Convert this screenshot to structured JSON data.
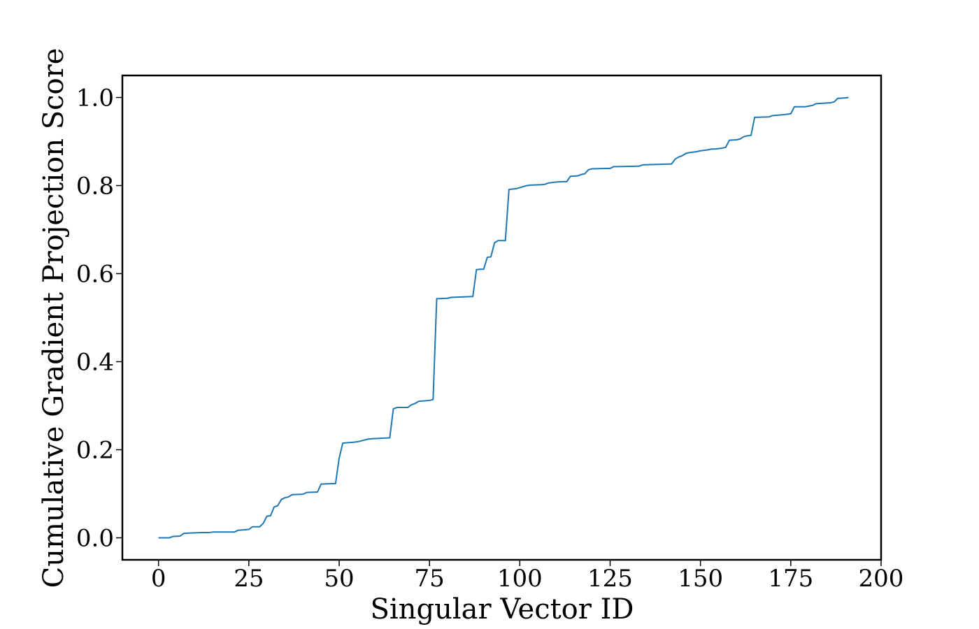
{
  "chart_data": {
    "type": "line",
    "title": "",
    "xlabel": "Singular Vector ID",
    "ylabel": "Cumulative Gradient Projection Score",
    "xlim": [
      -10,
      200
    ],
    "ylim": [
      -0.05,
      1.05
    ],
    "xticks": [
      0,
      25,
      50,
      75,
      100,
      125,
      150,
      175,
      200
    ],
    "xtick_labels": [
      "0",
      "25",
      "50",
      "75",
      "100",
      "125",
      "150",
      "175",
      "200"
    ],
    "yticks": [
      0.0,
      0.2,
      0.4,
      0.6,
      0.8,
      1.0
    ],
    "ytick_labels": [
      "0.0",
      "0.2",
      "0.4",
      "0.6",
      "0.8",
      "1.0"
    ],
    "grid": false,
    "legend": "none",
    "series": [
      {
        "color": "#1f77b4",
        "x": [
          0,
          3,
          4,
          6,
          7,
          9,
          12,
          14,
          15,
          17,
          21,
          22,
          25,
          26,
          28,
          29,
          30,
          31,
          32,
          33,
          34,
          35,
          36,
          37,
          40,
          41,
          44,
          45,
          48,
          49,
          50,
          51,
          54,
          55,
          58,
          59,
          64,
          65,
          66,
          69,
          70,
          71,
          72,
          75,
          76,
          77,
          80,
          81,
          84,
          87,
          88,
          89,
          90,
          91,
          92,
          93,
          94,
          96,
          97,
          98,
          99,
          102,
          103,
          106,
          107,
          108,
          110,
          112,
          113,
          114,
          116,
          117,
          118,
          119,
          120,
          125,
          126,
          127,
          133,
          134,
          142,
          143,
          144,
          145,
          146,
          147,
          148,
          149,
          150,
          151,
          152,
          153,
          154,
          156,
          157,
          158,
          160,
          161,
          162,
          163,
          164,
          165,
          169,
          170,
          173,
          175,
          176,
          179,
          181,
          182,
          186,
          187,
          188,
          190,
          191
        ],
        "y": [
          0.0,
          0.0,
          0.003,
          0.004,
          0.01,
          0.011,
          0.012,
          0.012,
          0.013,
          0.013,
          0.013,
          0.017,
          0.019,
          0.025,
          0.025,
          0.033,
          0.049,
          0.05,
          0.07,
          0.073,
          0.087,
          0.091,
          0.093,
          0.098,
          0.099,
          0.103,
          0.104,
          0.122,
          0.123,
          0.123,
          0.181,
          0.215,
          0.217,
          0.218,
          0.224,
          0.225,
          0.227,
          0.293,
          0.296,
          0.296,
          0.302,
          0.305,
          0.31,
          0.312,
          0.314,
          0.543,
          0.544,
          0.546,
          0.547,
          0.548,
          0.609,
          0.61,
          0.61,
          0.637,
          0.638,
          0.67,
          0.675,
          0.675,
          0.791,
          0.792,
          0.793,
          0.8,
          0.801,
          0.802,
          0.803,
          0.806,
          0.808,
          0.809,
          0.809,
          0.821,
          0.822,
          0.825,
          0.827,
          0.836,
          0.838,
          0.839,
          0.843,
          0.843,
          0.844,
          0.847,
          0.849,
          0.86,
          0.865,
          0.868,
          0.873,
          0.875,
          0.876,
          0.877,
          0.879,
          0.88,
          0.881,
          0.883,
          0.883,
          0.885,
          0.887,
          0.903,
          0.904,
          0.906,
          0.911,
          0.913,
          0.914,
          0.955,
          0.956,
          0.959,
          0.961,
          0.963,
          0.979,
          0.979,
          0.982,
          0.986,
          0.988,
          0.99,
          0.998,
          0.999,
          1.0
        ]
      }
    ]
  }
}
